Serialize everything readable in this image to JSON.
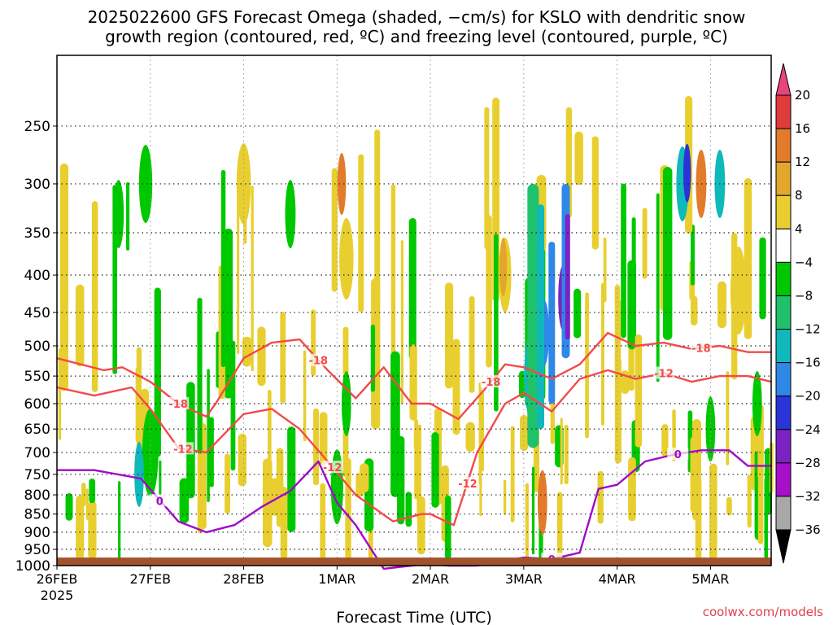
{
  "chart_data": {
    "type": "heatmap",
    "title_line1": "2025022600 GFS Forecast Omega (shaded, −cm/s) for KSLO with dendritic snow",
    "title_line2": "growth region (contoured, red, ºC) and freezing level (contoured, purple, ºC)",
    "xlabel": "Forecast Time (UTC)",
    "ylabel": "",
    "x_ticks": [
      "26FEB",
      "27FEB",
      "28FEB",
      "1MAR",
      "2MAR",
      "3MAR",
      "4MAR",
      "5MAR"
    ],
    "x_tick_year": "2025",
    "x_range_days": [
      0,
      7.65
    ],
    "y_ticks": [
      250,
      300,
      350,
      400,
      450,
      500,
      550,
      600,
      650,
      700,
      750,
      800,
      850,
      900,
      950,
      1000
    ],
    "y_range_hPa": [
      1000,
      200
    ],
    "y_scale": "log",
    "grid": true,
    "colorbar_labels": [
      "20",
      "16",
      "12",
      "8",
      "4",
      "−4",
      "−8",
      "−12",
      "−16",
      "−20",
      "−24",
      "−28",
      "−32",
      "−36"
    ],
    "colorbar_colors": [
      "#e8457a",
      "#e03b3b",
      "#e27b2a",
      "#e3a62c",
      "#e8cf2f",
      "#ffffff",
      "#00c800",
      "#1fc26a",
      "#0fb9b9",
      "#2f88e8",
      "#2a34d8",
      "#7c22c4",
      "#a610c9",
      "#a8a8a8",
      "#000000"
    ],
    "shading_levels": [
      {
        "name": "-4 to -8",
        "color": "#00c800"
      },
      {
        "name": "-8 to -12",
        "color": "#1fc26a"
      },
      {
        "name": "-12 to -16",
        "color": "#0fb9b9"
      },
      {
        "name": "-16 to -20",
        "color": "#2f88e8"
      },
      {
        "name": "-20 to -24",
        "color": "#2a34d8"
      },
      {
        "name": "-24 to -28",
        "color": "#7c22c4"
      },
      {
        "name": "-28 to -32",
        "color": "#a610c9"
      },
      {
        "name": "4 to 8",
        "color": "#e8cf2f"
      },
      {
        "name": "8 to 12",
        "color": "#e3a62c"
      },
      {
        "name": "12 to 16",
        "color": "#e27b2a"
      }
    ],
    "omega_blobs": [
      {
        "t": 0.66,
        "p": 330,
        "w": 0.06,
        "color": "#00c800"
      },
      {
        "t": 0.95,
        "p": 300,
        "w": 0.09,
        "color": "#00c800"
      },
      {
        "t": 1.0,
        "p": 700,
        "w": 0.12,
        "color": "#00c800"
      },
      {
        "t": 0.88,
        "p": 750,
        "w": 0.05,
        "color": "#0fb9b9"
      },
      {
        "t": 3.0,
        "p": 780,
        "w": 0.08,
        "color": "#00c800"
      },
      {
        "t": 3.1,
        "p": 600,
        "w": 0.05,
        "color": "#00c800"
      },
      {
        "t": 2.5,
        "p": 330,
        "w": 0.06,
        "color": "#00c800"
      },
      {
        "t": 5.1,
        "p": 550,
        "w": 0.14,
        "color": "#0fb9b9"
      },
      {
        "t": 5.22,
        "p": 480,
        "w": 0.05,
        "color": "#2f88e8"
      },
      {
        "t": 5.42,
        "p": 430,
        "w": 0.05,
        "color": "#7c22c4"
      },
      {
        "t": 6.7,
        "p": 300,
        "w": 0.08,
        "color": "#0fb9b9"
      },
      {
        "t": 6.75,
        "p": 290,
        "w": 0.03,
        "color": "#2a34d8"
      },
      {
        "t": 7.1,
        "p": 300,
        "w": 0.06,
        "color": "#0fb9b9"
      },
      {
        "t": 7.0,
        "p": 650,
        "w": 0.05,
        "color": "#00c800"
      },
      {
        "t": 7.5,
        "p": 600,
        "w": 0.05,
        "color": "#00c800"
      },
      {
        "t": 2.0,
        "p": 300,
        "w": 0.1,
        "color": "#e8cf2f"
      },
      {
        "t": 3.1,
        "p": 380,
        "w": 0.1,
        "color": "#e8cf2f"
      },
      {
        "t": 3.05,
        "p": 300,
        "w": 0.04,
        "color": "#e27b2a"
      },
      {
        "t": 4.8,
        "p": 400,
        "w": 0.08,
        "color": "#e8cf2f"
      },
      {
        "t": 4.78,
        "p": 390,
        "w": 0.03,
        "color": "#e3a62c"
      },
      {
        "t": 6.9,
        "p": 300,
        "w": 0.06,
        "color": "#e27b2a"
      },
      {
        "t": 7.3,
        "p": 420,
        "w": 0.12,
        "color": "#e8cf2f"
      },
      {
        "t": 5.2,
        "p": 820,
        "w": 0.05,
        "color": "#e27b2a"
      }
    ],
    "contours": [
      {
        "label": "-18",
        "color": "#f24a4a",
        "t": [
          0,
          0.5,
          0.7,
          1.0,
          1.3,
          1.6,
          1.7,
          2.0,
          2.3,
          2.6,
          2.9,
          3.2,
          3.5,
          3.8,
          4.0,
          4.3,
          4.6,
          4.8,
          5.0,
          5.3,
          5.6,
          5.9,
          6.2,
          6.5,
          6.8,
          7.1,
          7.4,
          7.65
        ],
        "p": [
          520,
          540,
          535,
          560,
          600,
          625,
          600,
          520,
          495,
          490,
          540,
          590,
          535,
          600,
          600,
          630,
          570,
          530,
          535,
          555,
          530,
          480,
          500,
          495,
          505,
          500,
          510,
          510
        ],
        "label_at_t": [
          1.3,
          2.8,
          4.65,
          6.9
        ]
      },
      {
        "label": "-12",
        "color": "#f24a4a",
        "t": [
          0,
          0.4,
          0.8,
          1.0,
          1.3,
          1.6,
          2.0,
          2.3,
          2.6,
          2.9,
          3.2,
          3.6,
          3.9,
          4.0,
          4.25,
          4.5,
          4.8,
          5.0,
          5.3,
          5.6,
          5.9,
          6.2,
          6.5,
          6.8,
          7.1,
          7.4,
          7.65
        ],
        "p": [
          570,
          585,
          570,
          610,
          690,
          700,
          620,
          610,
          650,
          720,
          800,
          870,
          850,
          850,
          880,
          700,
          600,
          580,
          615,
          555,
          540,
          555,
          545,
          560,
          550,
          550,
          560
        ],
        "label_at_t": [
          1.35,
          2.95,
          4.4,
          6.5
        ]
      },
      {
        "label": "0",
        "color": "#9f0cc7",
        "t": [
          0,
          0.4,
          0.9,
          1.3,
          1.6,
          1.9,
          2.2,
          2.5,
          2.8,
          3.0,
          3.2,
          3.5,
          3.8,
          4.0,
          4.2,
          4.5,
          4.8,
          5.0,
          5.3,
          5.6,
          5.8,
          6.0,
          6.3,
          6.6,
          6.9,
          7.2,
          7.4,
          7.65
        ],
        "p": [
          740,
          740,
          760,
          870,
          900,
          880,
          830,
          790,
          720,
          820,
          880,
          1010,
          1000,
          995,
          1000,
          1000,
          985,
          975,
          980,
          960,
          785,
          775,
          720,
          705,
          695,
          695,
          730,
          730
        ],
        "label_at_t": [
          1.1,
          5.3,
          6.65
        ]
      }
    ]
  },
  "credit": "coolwx.com/models"
}
